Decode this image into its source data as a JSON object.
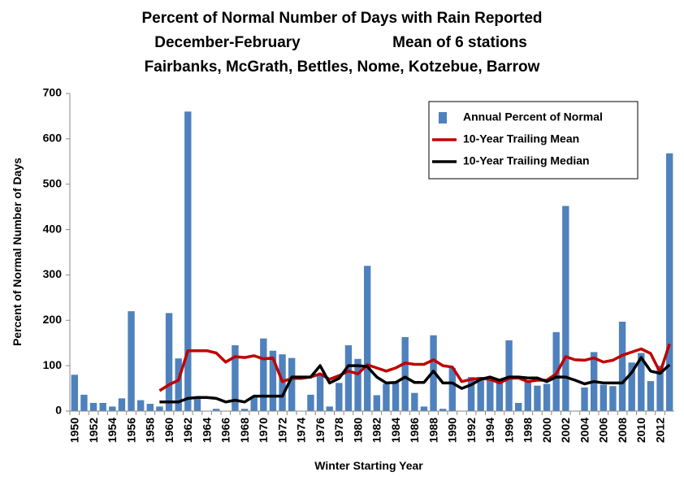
{
  "chart_data": {
    "type": "bar",
    "title": "Percent of Normal Number of Days with Rain Reported",
    "subtitle": [
      "December-February",
      "Mean of 6 stations"
    ],
    "stations": "Fairbanks, McGrath, Bettles, Nome, Kotzebue, Barrow",
    "x_label": "Winter Starting Year",
    "y_label": "Percent of Normal Number of Days",
    "categories": [
      "1950",
      null,
      "1952",
      null,
      "1954",
      null,
      "1956",
      null,
      "1958",
      null,
      "1960",
      null,
      "1962",
      null,
      "1964",
      null,
      "1966",
      null,
      "1968",
      null,
      "1970",
      null,
      "1972",
      null,
      "1974",
      null,
      "1976",
      null,
      "1978",
      null,
      "1980",
      null,
      "1982",
      null,
      "1984",
      null,
      "1986",
      null,
      "1988",
      null,
      "1990",
      null,
      "1992",
      null,
      "1994",
      null,
      "1996",
      null,
      "1998",
      null,
      "2000",
      null,
      "2002",
      null,
      "2004",
      null,
      "2006",
      null,
      "2008",
      null,
      "2010",
      null,
      "2012",
      null
    ],
    "series": [
      {
        "name": "Annual Percent of Normal",
        "type": "bar",
        "color": "#4f81bd",
        "values": [
          80,
          36,
          18,
          18,
          10,
          28,
          220,
          24,
          16,
          10,
          216,
          116,
          660,
          28,
          0,
          5,
          0,
          145,
          5,
          30,
          160,
          133,
          125,
          117,
          0,
          36,
          80,
          10,
          62,
          145,
          115,
          320,
          35,
          60,
          65,
          163,
          40,
          10,
          167,
          5,
          95,
          0,
          75,
          75,
          75,
          65,
          156,
          18,
          65,
          56,
          60,
          174,
          452,
          0,
          52,
          130,
          58,
          55,
          197,
          107,
          128,
          66,
          100,
          568
        ]
      },
      {
        "name": "10-Year Trailing Mean",
        "type": "line",
        "color": "#c00000",
        "values": [
          null,
          null,
          null,
          null,
          null,
          null,
          null,
          null,
          null,
          45,
          58,
          68,
          133,
          133,
          133,
          128,
          108,
          120,
          118,
          122,
          115,
          117,
          65,
          72,
          72,
          75,
          82,
          70,
          78,
          88,
          82,
          102,
          95,
          88,
          95,
          106,
          103,
          103,
          113,
          100,
          97,
          65,
          70,
          72,
          70,
          62,
          72,
          73,
          65,
          68,
          68,
          82,
          120,
          113,
          112,
          117,
          108,
          112,
          123,
          130,
          137,
          127,
          85,
          148
        ]
      },
      {
        "name": "10-Year Trailing Median",
        "type": "line",
        "color": "#000000",
        "values": [
          null,
          null,
          null,
          null,
          null,
          null,
          null,
          null,
          null,
          20,
          20,
          20,
          28,
          30,
          30,
          28,
          20,
          24,
          20,
          33,
          33,
          33,
          33,
          75,
          75,
          75,
          100,
          62,
          72,
          100,
          100,
          98,
          75,
          62,
          63,
          75,
          63,
          63,
          88,
          62,
          62,
          50,
          58,
          70,
          75,
          68,
          75,
          75,
          73,
          73,
          65,
          75,
          75,
          68,
          60,
          65,
          62,
          62,
          62,
          85,
          118,
          88,
          83,
          102
        ]
      }
    ],
    "ylim": [
      0,
      700
    ],
    "yticks": [
      0,
      100,
      200,
      300,
      400,
      500,
      600,
      700
    ],
    "grid": false,
    "legend": "upper-right"
  }
}
